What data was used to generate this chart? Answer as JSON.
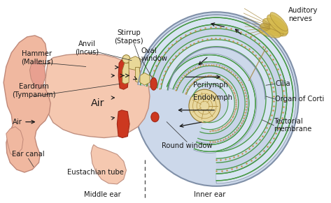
{
  "colors": {
    "white": "#ffffff",
    "bg": "#f8f8f2",
    "pinna_fill": "#f0b8a0",
    "pinna_stroke": "#c08878",
    "pinna_inner": "#e8a090",
    "middle_fill": "#f5c8b0",
    "middle_stroke": "#c09080",
    "cochlea_bg": "#ccd8ea",
    "cochlea_stroke": "#8090a8",
    "cochlea_light": "#dae4f0",
    "green1": "#4a9a4a",
    "green2": "#5aaa5a",
    "perilymph_fill": "#d8e4f2",
    "endolymph_fill": "#c8d4e8",
    "brown_dots": "#c8904a",
    "tan_center": "#e8d8a0",
    "red_drum": "#cc3820",
    "red_oval": "#cc3820",
    "ossicle_fill": "#e8d898",
    "ossicle_stroke": "#907830",
    "nerve_fill": "#d4b84a",
    "nerve_stroke": "#a08030",
    "text": "#1a1a1a",
    "arrow": "#1a1a1a",
    "dash": "#555555"
  },
  "labels": {
    "hammer": "Hammer\n(Malleus)",
    "anvil": "Anvil\n(Incus)",
    "stirrup": "Stirrup\n(Stapes)",
    "oval_window": "Oval\nwindow",
    "eardrum": "Eardrum\n(Tympanum)",
    "air_label": "Air",
    "air_middle": "Air",
    "ear_canal": "Ear canal",
    "eustachian": "Eustachian tube",
    "middle_ear": "Middle ear",
    "inner_ear": "Inner ear",
    "round_window": "Round window",
    "perilymph": "Perilymph",
    "endolymph": "Endolymph",
    "cilia": "Cilia",
    "organ_corti": "Organ of Corti",
    "tectorial": "Tectorial\nmembrane",
    "auditory": "Auditory\nnerves"
  }
}
